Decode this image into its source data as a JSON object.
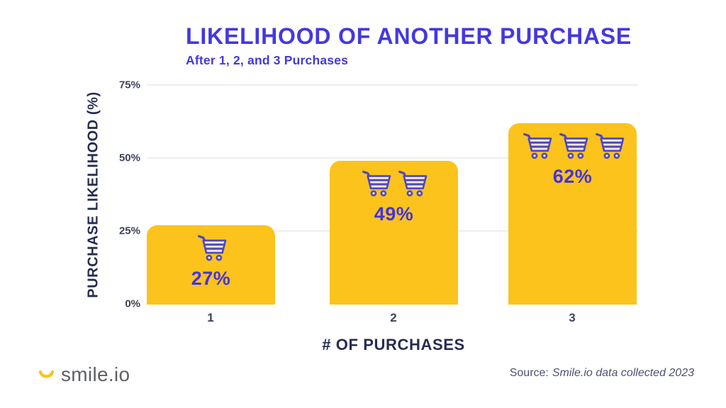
{
  "chart_data": {
    "type": "bar",
    "title": "LIKELIHOOD OF ANOTHER PURCHASE",
    "subtitle": "After 1, 2, and 3 Purchases",
    "categories": [
      "1",
      "2",
      "3"
    ],
    "values": [
      27,
      49,
      62
    ],
    "bar_labels": [
      "27%",
      "49%",
      "62%"
    ],
    "cart_icon_counts": [
      1,
      2,
      3
    ],
    "xlabel": "# OF PURCHASES",
    "ylabel": "PURCHASE LIKELIHOOD (%)",
    "yticks": [
      "75%",
      "50%",
      "25%",
      "0%"
    ],
    "ylim": [
      0,
      75
    ],
    "grid": "horizontal",
    "legend": "none",
    "colors": {
      "bar": "#FBC31C",
      "title": "#4438E0",
      "value_label": "#4433DE",
      "cart_stroke": "#4F46C4",
      "cart_stripe": "#F7E9C8",
      "axis_title": "#272C4F",
      "tick": "#3E425A",
      "gridline": "#EEEEF1"
    }
  },
  "footer": {
    "logo_text": "smile.io",
    "source_prefix": "Source:",
    "source_text": "Smile.io data collected 2023"
  }
}
